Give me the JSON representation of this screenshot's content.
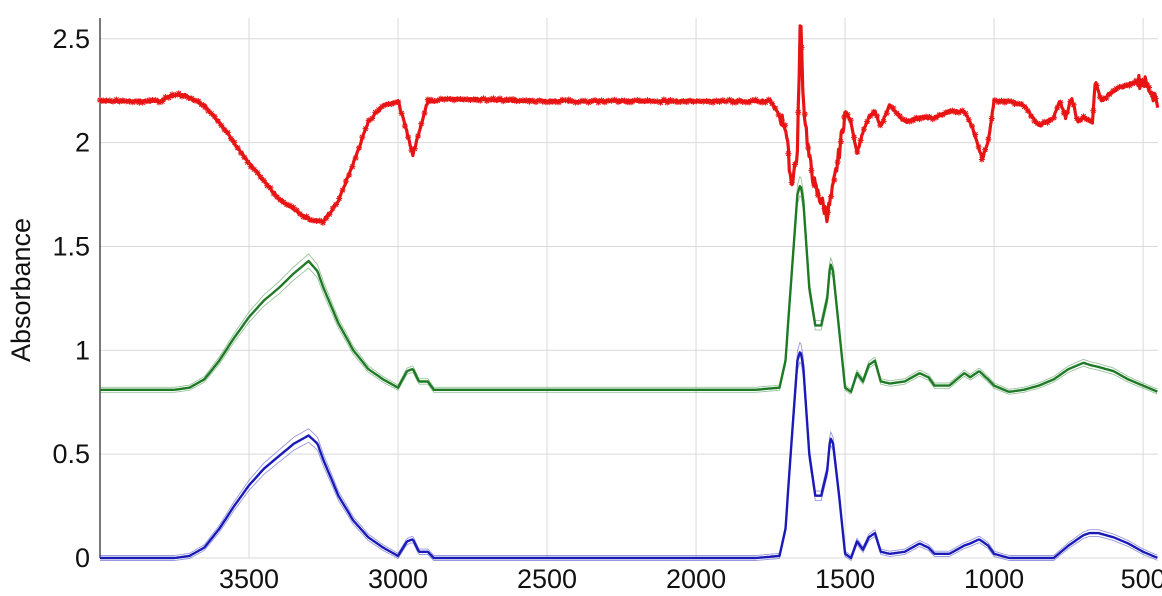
{
  "chart_data": {
    "type": "line",
    "title": "",
    "xlabel": "",
    "ylabel": "Absorbance",
    "xlim": [
      4000,
      450
    ],
    "ylim": [
      0,
      2.6
    ],
    "x_reversed": true,
    "grid": true,
    "x_ticks": [
      3500,
      3000,
      2500,
      2000,
      1500,
      1000,
      500
    ],
    "y_ticks": [
      0,
      0.5,
      1,
      1.5,
      2,
      2.5
    ],
    "x_tick_labels": [
      "3500",
      "3000",
      "2500",
      "2000",
      "1500",
      "1000",
      "500"
    ],
    "y_tick_labels": [
      "0",
      "0.5",
      "1",
      "1.5",
      "2",
      "2.5"
    ],
    "series": [
      {
        "color": "#e81414",
        "style": "noisy-markers",
        "x": [
          4000,
          3800,
          3750,
          3720,
          3650,
          3600,
          3500,
          3400,
          3300,
          3250,
          3200,
          3150,
          3100,
          3050,
          3000,
          2970,
          2950,
          2930,
          2900,
          2870,
          2850,
          2800,
          2500,
          2000,
          1750,
          1700,
          1680,
          1660,
          1650,
          1640,
          1620,
          1600,
          1580,
          1560,
          1540,
          1520,
          1500,
          1480,
          1460,
          1440,
          1420,
          1400,
          1380,
          1350,
          1300,
          1250,
          1200,
          1150,
          1100,
          1080,
          1060,
          1040,
          1020,
          1000,
          950,
          900,
          850,
          800,
          780,
          760,
          740,
          720,
          700,
          670,
          660,
          640,
          600,
          550,
          500,
          450
        ],
        "y": [
          2.2,
          2.2,
          2.23,
          2.23,
          2.18,
          2.1,
          1.9,
          1.73,
          1.63,
          1.62,
          1.72,
          1.9,
          2.1,
          2.18,
          2.2,
          2.05,
          1.94,
          2.05,
          2.2,
          2.2,
          2.21,
          2.21,
          2.2,
          2.2,
          2.2,
          2.08,
          1.8,
          1.95,
          2.62,
          2.2,
          1.92,
          1.78,
          1.72,
          1.65,
          1.78,
          1.95,
          2.15,
          2.1,
          1.95,
          2.05,
          2.12,
          2.15,
          2.08,
          2.18,
          2.1,
          2.12,
          2.12,
          2.15,
          2.15,
          2.1,
          2.02,
          1.92,
          2.0,
          2.2,
          2.2,
          2.18,
          2.08,
          2.12,
          2.2,
          2.12,
          2.22,
          2.1,
          2.12,
          2.1,
          2.3,
          2.2,
          2.25,
          2.28,
          2.3,
          2.2
        ]
      },
      {
        "color": "#1e7a24",
        "style": "line-with-band",
        "x": [
          4000,
          3750,
          3700,
          3650,
          3600,
          3550,
          3500,
          3450,
          3400,
          3350,
          3300,
          3270,
          3250,
          3200,
          3150,
          3100,
          3050,
          3000,
          2970,
          2950,
          2930,
          2900,
          2880,
          2850,
          2800,
          2500,
          2000,
          1800,
          1720,
          1700,
          1680,
          1660,
          1650,
          1640,
          1620,
          1600,
          1580,
          1560,
          1550,
          1540,
          1520,
          1500,
          1480,
          1460,
          1440,
          1420,
          1400,
          1380,
          1350,
          1300,
          1250,
          1220,
          1200,
          1150,
          1100,
          1080,
          1050,
          1020,
          1000,
          950,
          900,
          850,
          800,
          750,
          700,
          680,
          650,
          600,
          550,
          500,
          450
        ],
        "y": [
          0.81,
          0.81,
          0.82,
          0.86,
          0.95,
          1.06,
          1.16,
          1.24,
          1.3,
          1.37,
          1.43,
          1.38,
          1.3,
          1.13,
          1.0,
          0.91,
          0.86,
          0.82,
          0.9,
          0.91,
          0.85,
          0.85,
          0.81,
          0.81,
          0.81,
          0.81,
          0.81,
          0.81,
          0.82,
          0.95,
          1.35,
          1.75,
          1.8,
          1.72,
          1.3,
          1.12,
          1.12,
          1.25,
          1.42,
          1.38,
          1.1,
          0.82,
          0.8,
          0.89,
          0.85,
          0.93,
          0.95,
          0.85,
          0.84,
          0.85,
          0.89,
          0.87,
          0.83,
          0.83,
          0.89,
          0.87,
          0.9,
          0.86,
          0.83,
          0.8,
          0.81,
          0.83,
          0.86,
          0.91,
          0.94,
          0.93,
          0.92,
          0.9,
          0.86,
          0.83,
          0.8
        ]
      },
      {
        "color": "#1a1ab8",
        "style": "line-with-band",
        "x": [
          4000,
          3750,
          3700,
          3650,
          3600,
          3550,
          3500,
          3450,
          3400,
          3350,
          3300,
          3270,
          3250,
          3200,
          3150,
          3100,
          3050,
          3000,
          2970,
          2950,
          2930,
          2900,
          2880,
          2850,
          2800,
          2500,
          2000,
          1800,
          1720,
          1700,
          1680,
          1660,
          1650,
          1640,
          1620,
          1600,
          1580,
          1560,
          1550,
          1540,
          1520,
          1500,
          1480,
          1460,
          1440,
          1420,
          1400,
          1380,
          1350,
          1300,
          1250,
          1220,
          1200,
          1150,
          1100,
          1080,
          1050,
          1020,
          1000,
          950,
          900,
          850,
          800,
          750,
          700,
          680,
          650,
          600,
          550,
          500,
          450
        ],
        "y": [
          0.0,
          0.0,
          0.01,
          0.05,
          0.14,
          0.25,
          0.35,
          0.43,
          0.49,
          0.55,
          0.59,
          0.55,
          0.47,
          0.3,
          0.18,
          0.1,
          0.05,
          0.01,
          0.08,
          0.09,
          0.03,
          0.03,
          0.0,
          0.0,
          0.0,
          0.0,
          0.0,
          0.0,
          0.01,
          0.14,
          0.55,
          0.95,
          1.0,
          0.92,
          0.5,
          0.3,
          0.3,
          0.42,
          0.58,
          0.55,
          0.3,
          0.02,
          0.0,
          0.08,
          0.04,
          0.1,
          0.12,
          0.03,
          0.02,
          0.03,
          0.07,
          0.05,
          0.02,
          0.02,
          0.06,
          0.07,
          0.09,
          0.06,
          0.02,
          0.0,
          0.0,
          0.0,
          0.0,
          0.06,
          0.11,
          0.12,
          0.12,
          0.1,
          0.07,
          0.03,
          0.0
        ]
      }
    ]
  }
}
